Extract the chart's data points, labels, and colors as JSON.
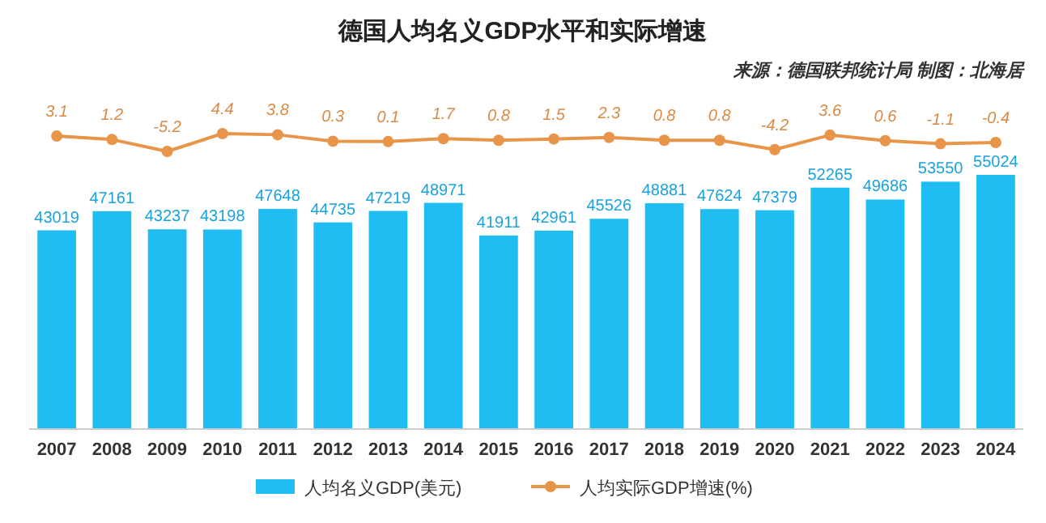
{
  "chart_data": [
    {
      "type": "bar",
      "categories": [
        "2007",
        "2008",
        "2009",
        "2010",
        "2011",
        "2012",
        "2013",
        "2014",
        "2015",
        "2016",
        "2017",
        "2018",
        "2019",
        "2020",
        "2021",
        "2022",
        "2023",
        "2024"
      ],
      "series": [
        {
          "name": "人均名义GDP(美元)",
          "color": "#1fbdf2",
          "values": [
            43019,
            47161,
            43237,
            43198,
            47648,
            44735,
            47219,
            48971,
            41911,
            42961,
            45526,
            48881,
            47624,
            47379,
            52265,
            49686,
            53550,
            55024
          ]
        }
      ],
      "data_labels": true,
      "legend": "bottom",
      "grid": false
    },
    {
      "type": "line",
      "title": "德国人均名义GDP水平和实际增速",
      "annotations": [
        "来源：德国联邦统计局 制图：北海居"
      ],
      "categories": [
        null,
        null,
        null,
        null,
        null,
        null,
        null,
        null,
        null,
        null,
        null,
        null,
        null,
        null,
        null,
        null,
        null,
        null
      ],
      "series": [
        {
          "name": "人均实际GDP增速(%)",
          "color": "#e8954a",
          "values": [
            3.1,
            1.2,
            -5.2,
            4.4,
            3.8,
            0.3,
            0.1,
            1.7,
            0.8,
            1.5,
            2.3,
            0.8,
            0.8,
            -4.2,
            3.6,
            0.6,
            -1.1,
            -0.4
          ]
        }
      ],
      "data_labels": true,
      "marker": "circle",
      "legend": "bottom"
    }
  ]
}
